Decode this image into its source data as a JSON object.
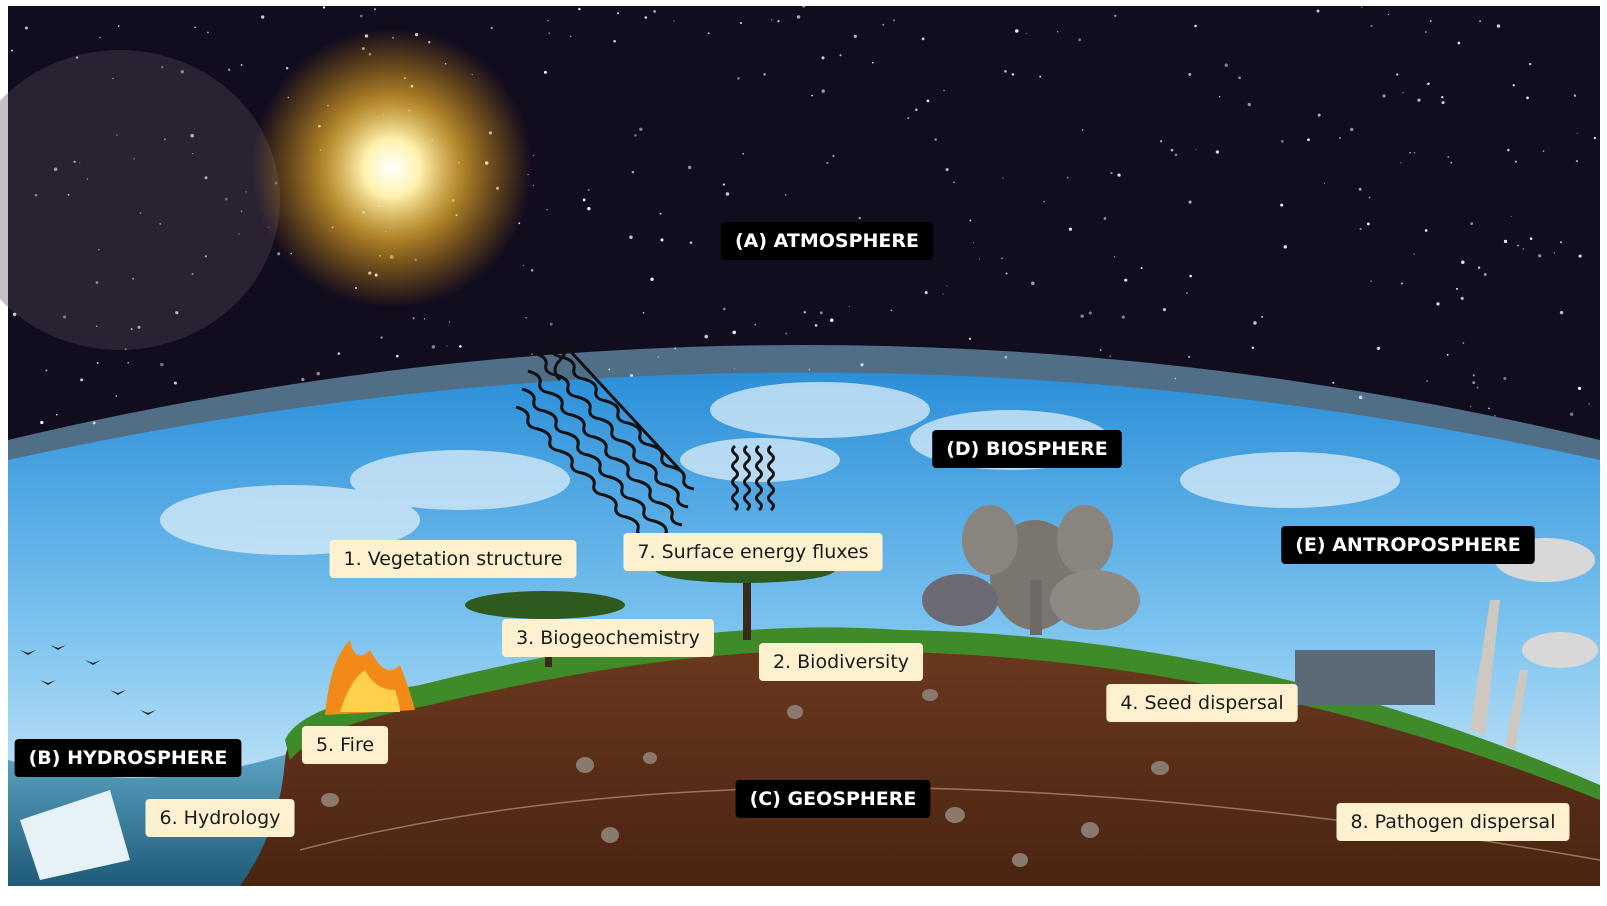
{
  "spheres": [
    {
      "label": "(A) ATMOSPHERE"
    },
    {
      "label": "(B) HYDROSPHERE"
    },
    {
      "label": "(C) GEOSPHERE"
    },
    {
      "label": "(D) BIOSPHERE"
    },
    {
      "label": "(E) ANTROPOSPHERE"
    }
  ],
  "processes": [
    {
      "label": "1. Vegetation structure"
    },
    {
      "label": "2. Biodiversity"
    },
    {
      "label": "3. Biogeochemistry"
    },
    {
      "label": "4. Seed dispersal"
    },
    {
      "label": "5. Fire"
    },
    {
      "label": "6. Hydrology"
    },
    {
      "label": "7. Surface energy fluxes"
    },
    {
      "label": "8. Pathogen dispersal"
    }
  ]
}
